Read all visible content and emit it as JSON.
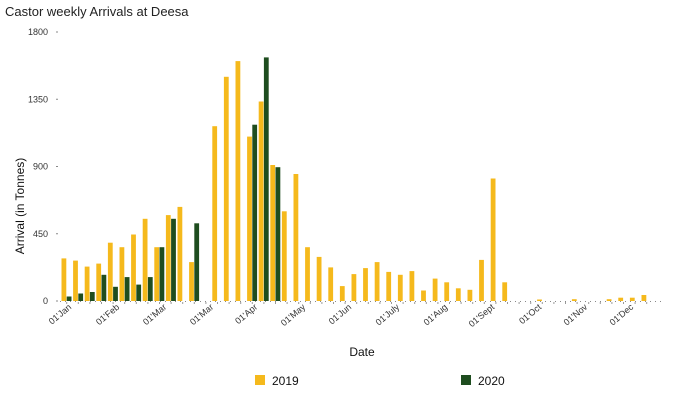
{
  "chart_data": {
    "type": "bar",
    "title": "Castor weekly Arrivals at Deesa",
    "xlabel": "Date",
    "ylabel": "Arrival (in Tonnes)",
    "ylim": [
      0,
      1800
    ],
    "yticks": [
      "0",
      "450",
      "900",
      "1350",
      "1800"
    ],
    "xtick_labels": [
      "01'Jan",
      "01'Feb",
      "01'Mar",
      "01'Mar",
      "01'Apr",
      "01'May",
      "01'Jun",
      "01'July",
      "01'Aug",
      "01'Sept",
      "01'Oct",
      "01'Nov",
      "01'Dec"
    ],
    "legend_position": "bottom",
    "grid": false,
    "series": [
      {
        "name": "2019",
        "color": "#f5b91c",
        "values": [
          285,
          270,
          230,
          250,
          390,
          360,
          445,
          550,
          360,
          575,
          630,
          260,
          0,
          1170,
          1500,
          1605,
          1100,
          1335,
          910,
          600,
          850,
          360,
          295,
          225,
          100,
          180,
          220,
          260,
          195,
          175,
          200,
          70,
          150,
          125,
          85,
          75,
          275,
          820,
          125,
          0,
          0,
          10,
          0,
          0,
          12,
          0,
          0,
          12,
          22,
          22,
          40
        ]
      },
      {
        "name": "2020",
        "color": "#1e4d1f",
        "values": [
          30,
          50,
          60,
          175,
          95,
          160,
          110,
          160,
          360,
          550,
          0,
          520,
          0,
          0,
          0,
          0,
          1180,
          1630,
          895,
          0,
          0,
          0,
          0,
          0,
          0,
          0,
          0,
          0,
          0,
          0,
          0,
          0,
          0,
          0,
          0,
          0,
          0,
          0,
          0,
          0,
          0,
          0,
          0,
          0,
          0,
          0,
          0,
          0,
          0,
          0,
          0
        ]
      }
    ]
  }
}
